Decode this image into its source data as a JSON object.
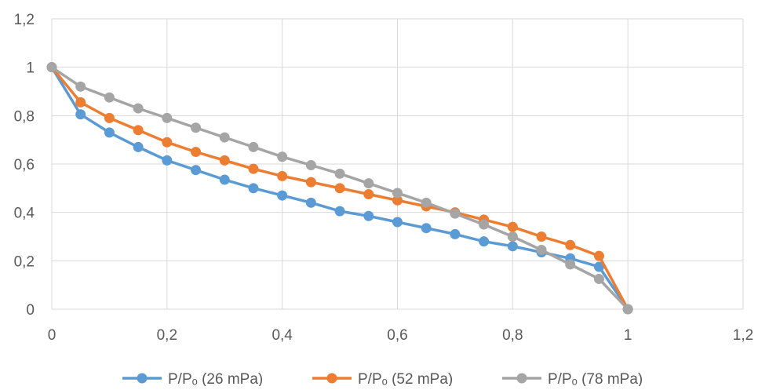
{
  "chart_data": {
    "type": "line",
    "title": "",
    "xlabel": "",
    "ylabel": "",
    "xlim": [
      0,
      1.2
    ],
    "ylim": [
      0,
      1.2
    ],
    "x_ticks": [
      "0",
      "0,2",
      "0,4",
      "0,6",
      "0,8",
      "1",
      "1,2"
    ],
    "y_ticks": [
      "0",
      "0,2",
      "0,4",
      "0,6",
      "0,8",
      "1",
      "1,2"
    ],
    "grid": true,
    "legend_position": "bottom",
    "series": [
      {
        "name": "P/Pₒ (26 mPa)",
        "color": "#5B9BD5",
        "x": [
          0,
          0.05,
          0.1,
          0.15,
          0.2,
          0.25,
          0.3,
          0.35,
          0.4,
          0.45,
          0.5,
          0.55,
          0.6,
          0.65,
          0.7,
          0.75,
          0.8,
          0.85,
          0.9,
          0.95,
          1
        ],
        "y": [
          1,
          0.805,
          0.73,
          0.67,
          0.615,
          0.575,
          0.535,
          0.5,
          0.47,
          0.44,
          0.405,
          0.385,
          0.36,
          0.335,
          0.31,
          0.28,
          0.26,
          0.235,
          0.21,
          0.175,
          0
        ]
      },
      {
        "name": "P/Pₒ (52 mPa)",
        "color": "#ED7D31",
        "x": [
          0,
          0.05,
          0.1,
          0.15,
          0.2,
          0.25,
          0.3,
          0.35,
          0.4,
          0.45,
          0.5,
          0.55,
          0.6,
          0.65,
          0.7,
          0.75,
          0.8,
          0.85,
          0.9,
          0.95,
          1
        ],
        "y": [
          1,
          0.855,
          0.79,
          0.74,
          0.69,
          0.65,
          0.615,
          0.58,
          0.55,
          0.525,
          0.5,
          0.475,
          0.45,
          0.425,
          0.4,
          0.37,
          0.34,
          0.3,
          0.265,
          0.22,
          0
        ]
      },
      {
        "name": "P/Pₒ (78 mPa)",
        "color": "#A5A5A5",
        "x": [
          0,
          0.05,
          0.1,
          0.15,
          0.2,
          0.25,
          0.3,
          0.35,
          0.4,
          0.45,
          0.5,
          0.55,
          0.6,
          0.65,
          0.7,
          0.75,
          0.8,
          0.85,
          0.9,
          0.95,
          1
        ],
        "y": [
          1,
          0.92,
          0.875,
          0.83,
          0.79,
          0.75,
          0.71,
          0.67,
          0.63,
          0.595,
          0.56,
          0.52,
          0.48,
          0.44,
          0.395,
          0.35,
          0.3,
          0.245,
          0.185,
          0.125,
          0
        ]
      }
    ]
  }
}
